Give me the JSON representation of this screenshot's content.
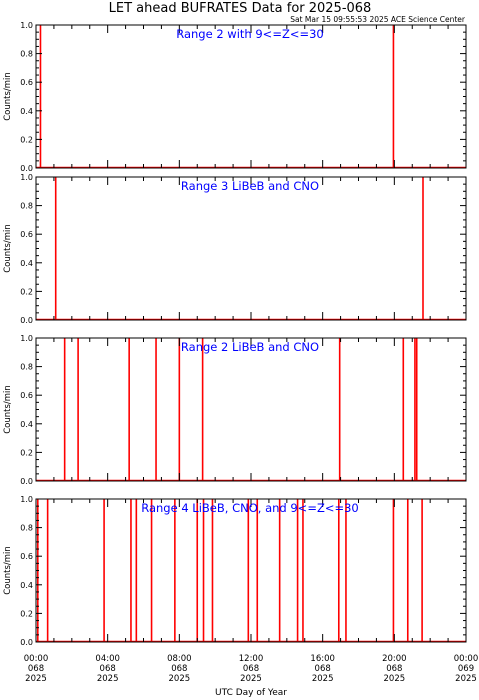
{
  "title": "LET ahead BUFRATES Data for 2025-068",
  "timestamp": "Sat Mar 15 09:55:53 2025 ACE Science Center",
  "xlabel": "UTC Day of Year",
  "colors": {
    "trace": "#ff0000",
    "panel_label": "#0000ff",
    "axes": "#000000",
    "background": "#ffffff"
  },
  "x_ticks": [
    {
      "hour": 0,
      "time": "00:00",
      "doy": "068",
      "year": "2025"
    },
    {
      "hour": 4,
      "time": "04:00",
      "doy": "068",
      "year": "2025"
    },
    {
      "hour": 8,
      "time": "08:00",
      "doy": "068",
      "year": "2025"
    },
    {
      "hour": 12,
      "time": "12:00",
      "doy": "068",
      "year": "2025"
    },
    {
      "hour": 16,
      "time": "16:00",
      "doy": "068",
      "year": "2025"
    },
    {
      "hour": 20,
      "time": "20:00",
      "doy": "068",
      "year": "2025"
    },
    {
      "hour": 24,
      "time": "00:00",
      "doy": "069",
      "year": "2025"
    }
  ],
  "y_ticks": [
    "0.0",
    "0.2",
    "0.4",
    "0.6",
    "0.8",
    "1.0"
  ],
  "chart_data": [
    {
      "type": "line",
      "label": "Range 2 with 9<=Z<=30",
      "ylabel": "Counts/min",
      "xlim": [
        0,
        24
      ],
      "ylim": [
        0,
        1
      ],
      "spikes_hours": [
        0.25,
        19.95
      ]
    },
    {
      "type": "line",
      "label": "Range 3 LiBeB and CNO",
      "ylabel": "Counts/min",
      "xlim": [
        0,
        24
      ],
      "ylim": [
        0,
        1
      ],
      "spikes_hours": [
        1.1,
        21.6
      ]
    },
    {
      "type": "line",
      "label": "Range 2 LiBeB and CNO",
      "ylabel": "Counts/min",
      "xlim": [
        0,
        24
      ],
      "ylim": [
        0,
        1
      ],
      "spikes_hours": [
        1.6,
        2.35,
        5.2,
        6.7,
        8.0,
        9.3,
        16.95,
        20.5,
        21.15,
        21.25
      ]
    },
    {
      "type": "line",
      "label": "Range 4 LiBeB, CNO, and 9<=Z<=30",
      "ylabel": "Counts/min",
      "xlim": [
        0,
        24
      ],
      "ylim": [
        0,
        1
      ],
      "spikes_hours": [
        0.1,
        0.65,
        3.8,
        5.3,
        5.6,
        6.45,
        7.75,
        9.0,
        9.35,
        9.85,
        11.85,
        12.35,
        13.6,
        14.6,
        14.9,
        16.9,
        17.3,
        19.95,
        20.75,
        21.55
      ]
    }
  ]
}
